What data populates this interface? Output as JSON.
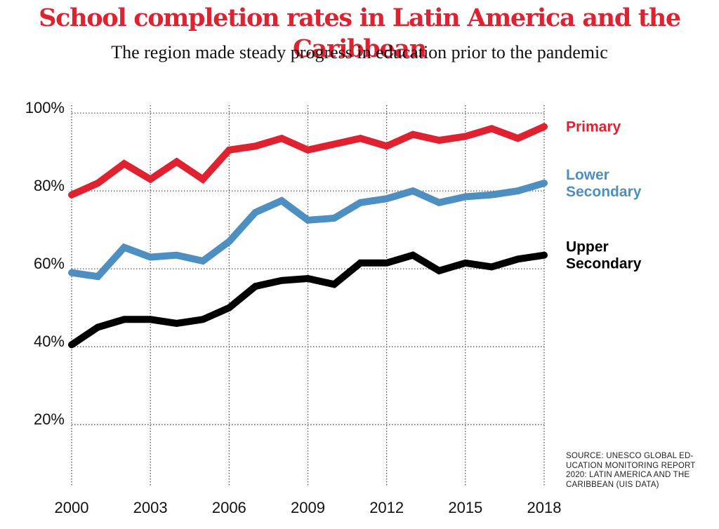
{
  "chart_data": {
    "type": "line",
    "title": "School completion rates in Latin America and the Caribbean",
    "subtitle": "The region made steady progress in education prior to the pandemic",
    "x": [
      2000,
      2001,
      2002,
      2003,
      2004,
      2005,
      2006,
      2007,
      2008,
      2009,
      2010,
      2011,
      2012,
      2013,
      2014,
      2015,
      2016,
      2017,
      2018
    ],
    "x_ticks": [
      "2000",
      "2003",
      "2006",
      "2009",
      "2012",
      "2015",
      "2018"
    ],
    "y_ticks": [
      "20%",
      "40%",
      "60%",
      "80%",
      "100%"
    ],
    "ylim": [
      4,
      102
    ],
    "xlim": [
      2000,
      2018
    ],
    "grid": true,
    "legend": "direct labels at right end of each line",
    "series": [
      {
        "name": "Primary",
        "label_lines": [
          "Primary"
        ],
        "color": "#e0212f",
        "values": [
          79,
          82,
          87,
          83,
          87.5,
          83,
          90.5,
          91.5,
          93.5,
          90.5,
          92,
          93.5,
          91.5,
          94.5,
          93,
          94,
          96,
          93.5,
          96.5
        ]
      },
      {
        "name": "Lower Secondary",
        "label_lines": [
          "Lower",
          "Secondary"
        ],
        "color": "#4d8fc0",
        "values": [
          59,
          58,
          65.5,
          63,
          63.5,
          62,
          67,
          74.5,
          77.5,
          72.5,
          73,
          77,
          78,
          80,
          77,
          78.5,
          79,
          80,
          82
        ]
      },
      {
        "name": "Upper Secondary",
        "label_lines": [
          "Upper",
          "Secondary"
        ],
        "color": "#000000",
        "values": [
          40.5,
          45,
          47,
          47,
          46,
          47,
          50,
          55.5,
          57,
          57.5,
          56,
          61.5,
          61.5,
          63.5,
          59.5,
          61.5,
          60.5,
          62.5,
          63.5
        ]
      }
    ]
  },
  "source": "SOURCE: UNESCO GLOBAL ED-UCATION MONITORING REPORT 2020: LATIN AMERICA AND THE CARIBBEAN (UIS DATA)",
  "source_lines": [
    "SOURCE: UNESCO GLOBAL ED-",
    "UCATION MONITORING REPORT",
    "2020: LATIN AMERICA AND THE",
    "CARIBBEAN (UIS DATA)"
  ],
  "colors": {
    "title": "#e0212f",
    "grid": "#555555",
    "text": "#111111"
  }
}
